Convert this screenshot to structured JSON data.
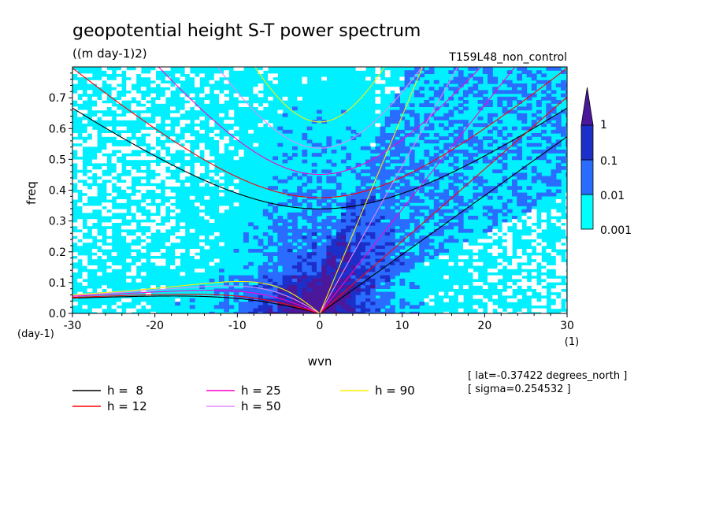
{
  "chart_data": {
    "type": "heatmap",
    "title": "geopotential height S-T power spectrum",
    "subtitle": "((m day-1)2)",
    "run_label": "T159L48_non_control",
    "xlabel": "wvn",
    "x_unit": "(1)",
    "ylabel": "freq",
    "y_unit": "(day-1)",
    "xlim": [
      -30,
      30
    ],
    "ylim": [
      0,
      0.8
    ],
    "x_ticks": [
      "-30",
      "-20",
      "-10",
      "0",
      "10",
      "20",
      "30"
    ],
    "y_ticks": [
      "0.0",
      "0.1",
      "0.2",
      "0.3",
      "0.4",
      "0.5",
      "0.6",
      "0.7"
    ],
    "colorbar": {
      "levels": [
        "0.001",
        "0.01",
        "0.1",
        "1"
      ],
      "colors": [
        "#00ffff",
        "#2a6cff",
        "#1c2fc8",
        "#4b189c"
      ],
      "background": "#ffffff",
      "grid_shading": "#e9f8ff"
    },
    "dispersion_curves": [
      {
        "name": "h =  8",
        "h": 8,
        "color": "#000000"
      },
      {
        "name": "h = 12",
        "h": 12,
        "color": "#ff0000"
      },
      {
        "name": "h = 25",
        "h": 25,
        "color": "#ff00cc"
      },
      {
        "name": "h = 50",
        "h": 50,
        "color": "#e28aff"
      },
      {
        "name": "h = 90",
        "h": 90,
        "color": "#ffee00"
      }
    ],
    "annotations": [
      "[ lat=-0.37422 degrees_north ]",
      "[ sigma=0.254532 ]"
    ]
  }
}
